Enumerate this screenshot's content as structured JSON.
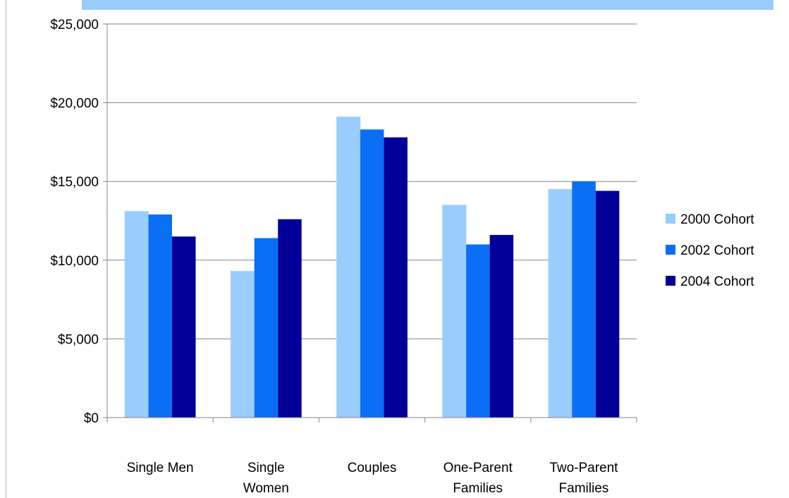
{
  "chart_data": {
    "type": "bar",
    "title": "",
    "xlabel": "",
    "ylabel": "",
    "categories": [
      [
        "Single Men"
      ],
      [
        "Single",
        "Women"
      ],
      [
        "Couples"
      ],
      [
        "One-Parent",
        "Families"
      ],
      [
        "Two-Parent",
        "Families"
      ]
    ],
    "series": [
      {
        "name": "2000 Cohort",
        "color": "#99ccff",
        "values": [
          13100,
          9300,
          19100,
          13500,
          14500
        ]
      },
      {
        "name": "2002 Cohort",
        "color": "#0a6ff5",
        "values": [
          12900,
          11400,
          18300,
          11000,
          15000
        ]
      },
      {
        "name": "2004 Cohort",
        "color": "#000099",
        "values": [
          11500,
          12600,
          17800,
          11600,
          14400
        ]
      }
    ],
    "ylim": [
      0,
      25000
    ],
    "yticks": [
      0,
      5000,
      10000,
      15000,
      20000,
      25000
    ],
    "ytick_labels": [
      "$0",
      "$5,000",
      "$10,000",
      "$15,000",
      "$20,000",
      "$25,000"
    ],
    "grid": true,
    "legend_position": "right",
    "band_color": "#99ccff"
  }
}
